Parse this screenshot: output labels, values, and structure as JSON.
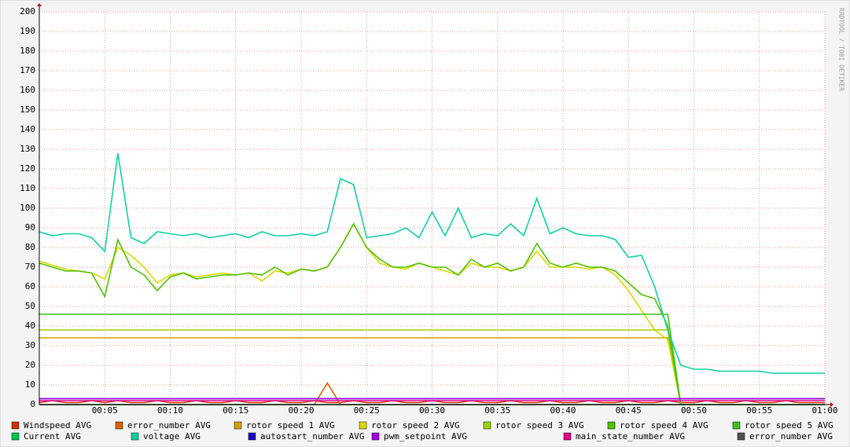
{
  "chart_data": {
    "type": "line",
    "watermark": "RRDTOOL / TOBI OETIKER",
    "x": [
      0,
      1,
      2,
      3,
      4,
      5,
      6,
      7,
      8,
      9,
      10,
      11,
      12,
      13,
      14,
      15,
      16,
      17,
      18,
      19,
      20,
      21,
      22,
      23,
      24,
      25,
      26,
      27,
      28,
      29,
      30,
      31,
      32,
      33,
      34,
      35,
      36,
      37,
      38,
      39,
      40,
      41,
      42,
      43,
      44,
      45,
      46,
      47,
      48,
      49,
      50,
      51,
      52,
      53,
      54,
      55,
      56,
      57,
      58,
      59,
      60
    ],
    "xlim": [
      0,
      60
    ],
    "xticks": [
      {
        "value": 5,
        "label": "00:05"
      },
      {
        "value": 10,
        "label": "00:10"
      },
      {
        "value": 15,
        "label": "00:15"
      },
      {
        "value": 20,
        "label": "00:20"
      },
      {
        "value": 25,
        "label": "00:25"
      },
      {
        "value": 30,
        "label": "00:30"
      },
      {
        "value": 35,
        "label": "00:35"
      },
      {
        "value": 40,
        "label": "00:40"
      },
      {
        "value": 45,
        "label": "00:45"
      },
      {
        "value": 50,
        "label": "00:50"
      },
      {
        "value": 55,
        "label": "00:55"
      },
      {
        "value": 60,
        "label": "01:00"
      }
    ],
    "ylim": [
      0,
      200
    ],
    "yticks": [
      0,
      10,
      20,
      30,
      40,
      50,
      60,
      70,
      80,
      90,
      100,
      110,
      120,
      130,
      140,
      150,
      160,
      170,
      180,
      190,
      200
    ],
    "grid": true,
    "series": [
      {
        "name": "Windspeed AVG",
        "color": "#d03010",
        "values": [
          1,
          2,
          1,
          1,
          2,
          1,
          2,
          1,
          1,
          2,
          1,
          1,
          2,
          1,
          1,
          2,
          1,
          1,
          2,
          1,
          1,
          2,
          1,
          1,
          2,
          1,
          1,
          2,
          1,
          1,
          2,
          1,
          1,
          2,
          1,
          1,
          2,
          1,
          1,
          2,
          1,
          1,
          2,
          1,
          1,
          2,
          1,
          1,
          2,
          1,
          1,
          2,
          1,
          1,
          2,
          1,
          1,
          2,
          1,
          1,
          1
        ]
      },
      {
        "name": "error_number AVG",
        "color": "#e06000",
        "values": [
          0,
          0,
          0,
          0,
          0,
          0,
          0,
          0,
          0,
          0,
          0,
          0,
          0,
          0,
          0,
          0,
          0,
          0,
          0,
          0,
          0,
          0,
          11,
          0,
          0,
          0,
          0,
          0,
          0,
          0,
          0,
          0,
          0,
          0,
          0,
          0,
          0,
          0,
          0,
          0,
          0,
          0,
          0,
          0,
          0,
          0,
          0,
          0,
          0,
          0,
          0,
          0,
          0,
          0,
          0,
          0,
          0,
          0,
          0,
          0,
          0
        ]
      },
      {
        "name": "rotor speed 1 AVG",
        "color": "#d0a000",
        "values": [
          34,
          34,
          34,
          34,
          34,
          34,
          34,
          34,
          34,
          34,
          34,
          34,
          34,
          34,
          34,
          34,
          34,
          34,
          34,
          34,
          34,
          34,
          34,
          34,
          34,
          34,
          34,
          34,
          34,
          34,
          34,
          34,
          34,
          34,
          34,
          34,
          34,
          34,
          34,
          34,
          34,
          34,
          34,
          34,
          34,
          34,
          34,
          34,
          34,
          0,
          0,
          0,
          0,
          0,
          0,
          0,
          0,
          0,
          0,
          0,
          0
        ]
      },
      {
        "name": "rotor speed 2 AVG",
        "color": "#d8d800",
        "values": [
          73,
          71,
          69,
          68,
          67,
          64,
          80,
          76,
          70,
          62,
          66,
          67,
          65,
          66,
          67,
          66,
          67,
          63,
          68,
          67,
          69,
          68,
          70,
          80,
          92,
          80,
          72,
          70,
          69,
          72,
          70,
          68,
          66,
          72,
          70,
          70,
          68,
          70,
          78,
          70,
          70,
          70,
          69,
          70,
          66,
          58,
          48,
          38,
          33,
          0,
          0,
          0,
          0,
          0,
          0,
          0,
          0,
          0,
          0,
          0,
          0
        ]
      },
      {
        "name": "rotor speed 3 AVG",
        "color": "#a0d000",
        "values": [
          38,
          38,
          38,
          38,
          38,
          38,
          38,
          38,
          38,
          38,
          38,
          38,
          38,
          38,
          38,
          38,
          38,
          38,
          38,
          38,
          38,
          38,
          38,
          38,
          38,
          38,
          38,
          38,
          38,
          38,
          38,
          38,
          38,
          38,
          38,
          38,
          38,
          38,
          38,
          38,
          38,
          38,
          38,
          38,
          38,
          38,
          38,
          38,
          38,
          0,
          0,
          0,
          0,
          0,
          0,
          0,
          0,
          0,
          0,
          0,
          0
        ]
      },
      {
        "name": "rotor speed 4 AVG",
        "color": "#50c000",
        "values": [
          72,
          70,
          68,
          68,
          67,
          55,
          84,
          70,
          66,
          58,
          65,
          67,
          64,
          65,
          66,
          66,
          67,
          66,
          70,
          66,
          69,
          68,
          70,
          80,
          92,
          80,
          74,
          70,
          70,
          72,
          70,
          70,
          66,
          74,
          70,
          72,
          68,
          70,
          82,
          72,
          70,
          72,
          70,
          70,
          68,
          62,
          56,
          54,
          40,
          0,
          0,
          0,
          0,
          0,
          0,
          0,
          0,
          0,
          0,
          0,
          0
        ]
      },
      {
        "name": "rotor speed 5 AVG",
        "color": "#40c020",
        "values": [
          46,
          46,
          46,
          46,
          46,
          46,
          46,
          46,
          46,
          46,
          46,
          46,
          46,
          46,
          46,
          46,
          46,
          46,
          46,
          46,
          46,
          46,
          46,
          46,
          46,
          46,
          46,
          46,
          46,
          46,
          46,
          46,
          46,
          46,
          46,
          46,
          46,
          46,
          46,
          46,
          46,
          46,
          46,
          46,
          46,
          46,
          46,
          46,
          46,
          0,
          0,
          0,
          0,
          0,
          0,
          0,
          0,
          0,
          0,
          0,
          0
        ]
      },
      {
        "name": "Current AVG",
        "color": "#00c050",
        "values": [
          0,
          0,
          0,
          0,
          0,
          0,
          0,
          0,
          0,
          0,
          0,
          0,
          0,
          0,
          0,
          0,
          0,
          0,
          0,
          0,
          0,
          0,
          0,
          0,
          0,
          0,
          0,
          0,
          0,
          0,
          0,
          0,
          0,
          0,
          0,
          0,
          0,
          0,
          0,
          0,
          0,
          0,
          0,
          0,
          0,
          0,
          0,
          0,
          0,
          0,
          0,
          0,
          0,
          0,
          0,
          0,
          0,
          0,
          0,
          0,
          0
        ]
      },
      {
        "name": "voltage AVG",
        "color": "#10d0a0",
        "values": [
          88,
          86,
          87,
          87,
          85,
          78,
          128,
          85,
          82,
          88,
          87,
          86,
          87,
          85,
          86,
          87,
          85,
          88,
          86,
          86,
          87,
          86,
          88,
          115,
          112,
          85,
          86,
          87,
          90,
          85,
          98,
          86,
          100,
          85,
          87,
          86,
          92,
          86,
          105,
          87,
          90,
          87,
          86,
          86,
          84,
          75,
          76,
          60,
          38,
          20,
          18,
          18,
          17,
          17,
          17,
          17,
          16,
          16,
          16,
          16,
          16
        ]
      },
      {
        "name": "autostart_number AVG",
        "color": "#2000c0",
        "values": [
          3,
          3,
          3,
          3,
          3,
          3,
          3,
          3,
          3,
          3,
          3,
          3,
          3,
          3,
          3,
          3,
          3,
          3,
          3,
          3,
          3,
          3,
          3,
          3,
          3,
          3,
          3,
          3,
          3,
          3,
          3,
          3,
          3,
          3,
          3,
          3,
          3,
          3,
          3,
          3,
          3,
          3,
          3,
          3,
          3,
          3,
          3,
          3,
          3,
          3,
          3,
          3,
          3,
          3,
          3,
          3,
          3,
          3,
          3,
          3,
          3
        ]
      },
      {
        "name": "pwm_setpoint AVG",
        "color": "#a000e0",
        "values": [
          3,
          3,
          3,
          3,
          3,
          3,
          3,
          3,
          3,
          3,
          3,
          3,
          3,
          3,
          3,
          3,
          3,
          3,
          3,
          3,
          3,
          3,
          3,
          3,
          3,
          3,
          3,
          3,
          3,
          3,
          3,
          3,
          3,
          3,
          3,
          3,
          3,
          3,
          3,
          3,
          3,
          3,
          3,
          3,
          3,
          3,
          3,
          3,
          3,
          3,
          3,
          3,
          3,
          3,
          3,
          3,
          3,
          3,
          3,
          3,
          3
        ]
      },
      {
        "name": "main_state_number AVG",
        "color": "#e00090",
        "values": [
          2,
          2,
          2,
          2,
          2,
          2,
          2,
          2,
          2,
          2,
          2,
          2,
          2,
          2,
          2,
          2,
          2,
          2,
          2,
          2,
          2,
          2,
          2,
          2,
          2,
          2,
          2,
          2,
          2,
          2,
          2,
          2,
          2,
          2,
          2,
          2,
          2,
          2,
          2,
          2,
          2,
          2,
          2,
          2,
          2,
          2,
          2,
          2,
          2,
          2,
          2,
          2,
          2,
          2,
          2,
          2,
          2,
          2,
          2,
          2,
          2
        ]
      },
      {
        "name": "error_number AVG",
        "color": "#505050",
        "values": [
          0,
          0,
          0,
          0,
          0,
          0,
          0,
          0,
          0,
          0,
          0,
          0,
          0,
          0,
          0,
          0,
          0,
          0,
          0,
          0,
          0,
          0,
          0,
          0,
          0,
          0,
          0,
          0,
          0,
          0,
          0,
          0,
          0,
          0,
          0,
          0,
          0,
          0,
          0,
          0,
          0,
          0,
          0,
          0,
          0,
          0,
          0,
          0,
          0,
          0,
          0,
          0,
          0,
          0,
          0,
          0,
          0,
          0,
          0,
          0,
          0
        ]
      }
    ]
  }
}
